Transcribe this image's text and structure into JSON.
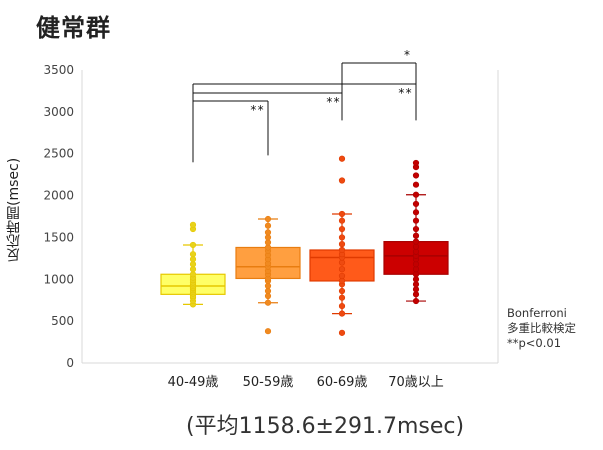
{
  "chart_data": {
    "type": "boxplot",
    "title": "健常群",
    "ylabel": "反応時間(msec)",
    "ylim": [
      0,
      3500
    ],
    "yticks": [
      0,
      500,
      1000,
      1500,
      2000,
      2500,
      3000,
      3500
    ],
    "categories": [
      "40-49歳",
      "50-59歳",
      "60-69歳",
      "70歳以上"
    ],
    "colors": {
      "40-49歳": {
        "fill": "#ffff66",
        "stroke": "#e6c800",
        "dot": "#e8d21a"
      },
      "50-59歳": {
        "fill": "#ff9f40",
        "stroke": "#e87d10",
        "dot": "#f08a20"
      },
      "60-69歳": {
        "fill": "#ff5a1a",
        "stroke": "#e03a00",
        "dot": "#ee4a10"
      },
      "70歳以上": {
        "fill": "#cc0000",
        "stroke": "#a80000",
        "dot": "#c20000"
      }
    },
    "boxes": [
      {
        "category": "40-49歳",
        "whisker_low": 700,
        "q1": 820,
        "median": 920,
        "q3": 1060,
        "whisker_high": 1410,
        "points": [
          700,
          740,
          780,
          800,
          830,
          850,
          870,
          890,
          900,
          920,
          940,
          960,
          990,
          1020,
          1060,
          1120,
          1180,
          1240,
          1300,
          1410,
          1600,
          1650
        ]
      },
      {
        "category": "50-59歳",
        "whisker_low": 720,
        "q1": 1010,
        "median": 1150,
        "q3": 1380,
        "whisker_high": 1720,
        "points": [
          380,
          720,
          800,
          860,
          920,
          980,
          1010,
          1060,
          1100,
          1150,
          1190,
          1240,
          1290,
          1340,
          1380,
          1440,
          1500,
          1560,
          1640,
          1720
        ]
      },
      {
        "category": "60-69歳",
        "whisker_low": 590,
        "q1": 980,
        "median": 1260,
        "q3": 1350,
        "whisker_high": 1780,
        "points": [
          360,
          590,
          680,
          780,
          860,
          940,
          980,
          1040,
          1120,
          1200,
          1260,
          1300,
          1350,
          1420,
          1500,
          1600,
          1700,
          1780,
          2180,
          2440
        ]
      },
      {
        "category": "70歳以上",
        "whisker_low": 740,
        "q1": 1060,
        "median": 1280,
        "q3": 1450,
        "whisker_high": 2010,
        "points": [
          740,
          820,
          880,
          940,
          1000,
          1060,
          1120,
          1180,
          1240,
          1280,
          1330,
          1390,
          1450,
          1520,
          1600,
          1700,
          1800,
          1900,
          2010,
          2130,
          2240,
          2340,
          2390
        ]
      }
    ],
    "significance": [
      {
        "from": "40-49歳",
        "to": "50-59歳",
        "label": "**"
      },
      {
        "from": "40-49歳",
        "to": "60-69歳",
        "label": "**"
      },
      {
        "from": "40-49歳",
        "to": "70歳以上",
        "label": "**"
      },
      {
        "from": "60-69歳",
        "to": "70歳以上",
        "label": "*"
      }
    ],
    "grid": false,
    "legend": "none"
  },
  "note": {
    "lines": [
      "Bonferroni",
      "多重比較検定",
      "**p<0.01"
    ]
  },
  "subtitle": "(平均1158.6±291.7msec)"
}
